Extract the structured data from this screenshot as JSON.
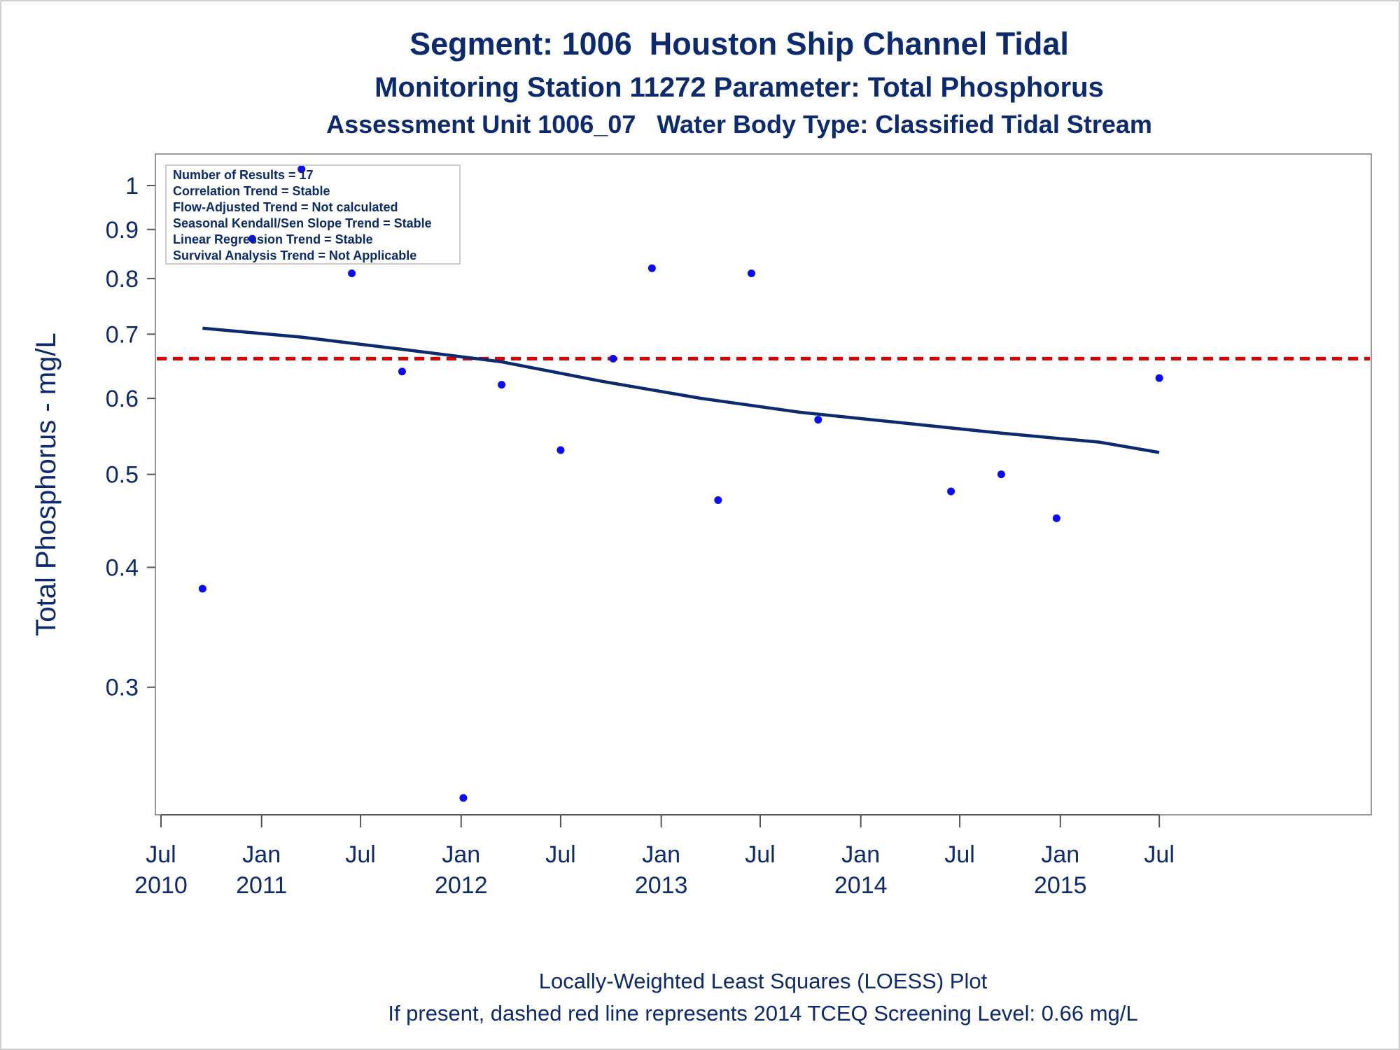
{
  "chart_data": {
    "type": "scatter",
    "title": "Segment: 1006  Houston Ship Channel Tidal",
    "subtitle": "Monitoring Station 11272 Parameter: Total Phosphorus",
    "subtitle2": "Assessment Unit 1006_07   Water Body Type: Classified Tidal Stream",
    "ylabel": "Total Phosphorus - mg/L",
    "xlabel": "",
    "y_scale": "log",
    "ylim": [
      0.225,
      1.05
    ],
    "xlim": [
      "2010-07-01",
      "2016-07-01"
    ],
    "grid": false,
    "y_ticks": [
      {
        "value": 0.3,
        "label": "0.3"
      },
      {
        "value": 0.4,
        "label": "0.4"
      },
      {
        "value": 0.5,
        "label": "0.5"
      },
      {
        "value": 0.6,
        "label": "0.6"
      },
      {
        "value": 0.7,
        "label": "0.7"
      },
      {
        "value": 0.8,
        "label": "0.8"
      },
      {
        "value": 0.9,
        "label": "0.9"
      },
      {
        "value": 1.0,
        "label": "1"
      }
    ],
    "x_ticks": [
      {
        "date": "2010-07-01",
        "month": "Jul",
        "year": "2010"
      },
      {
        "date": "2011-01-01",
        "month": "Jan",
        "year": "2011"
      },
      {
        "date": "2011-07-01",
        "month": "Jul",
        "year": ""
      },
      {
        "date": "2012-01-01",
        "month": "Jan",
        "year": "2012"
      },
      {
        "date": "2012-07-01",
        "month": "Jul",
        "year": ""
      },
      {
        "date": "2013-01-01",
        "month": "Jan",
        "year": "2013"
      },
      {
        "date": "2013-07-01",
        "month": "Jul",
        "year": ""
      },
      {
        "date": "2014-01-01",
        "month": "Jan",
        "year": "2014"
      },
      {
        "date": "2014-07-01",
        "month": "Jul",
        "year": ""
      },
      {
        "date": "2015-01-01",
        "month": "Jan",
        "year": "2015"
      },
      {
        "date": "2015-07-01",
        "month": "Jul",
        "year": ""
      }
    ],
    "points": [
      {
        "x": "2010-09-15",
        "y": 0.38
      },
      {
        "x": "2010-12-15",
        "y": 0.88
      },
      {
        "x": "2011-03-15",
        "y": 1.04
      },
      {
        "x": "2011-06-15",
        "y": 0.81
      },
      {
        "x": "2011-09-15",
        "y": 0.64
      },
      {
        "x": "2012-01-05",
        "y": 0.23
      },
      {
        "x": "2012-03-15",
        "y": 0.62
      },
      {
        "x": "2012-07-01",
        "y": 0.53
      },
      {
        "x": "2012-10-05",
        "y": 0.66
      },
      {
        "x": "2012-12-15",
        "y": 0.82
      },
      {
        "x": "2013-04-15",
        "y": 0.47
      },
      {
        "x": "2013-06-15",
        "y": 0.81
      },
      {
        "x": "2013-10-15",
        "y": 0.57
      },
      {
        "x": "2014-06-15",
        "y": 0.48
      },
      {
        "x": "2014-09-15",
        "y": 0.5
      },
      {
        "x": "2014-12-25",
        "y": 0.45
      },
      {
        "x": "2015-07-01",
        "y": 0.63
      }
    ],
    "trend_line": {
      "type": "LOESS",
      "points": [
        {
          "x": "2010-09-15",
          "y": 0.71
        },
        {
          "x": "2011-03-15",
          "y": 0.695
        },
        {
          "x": "2011-09-15",
          "y": 0.675
        },
        {
          "x": "2012-03-15",
          "y": 0.655
        },
        {
          "x": "2012-09-15",
          "y": 0.625
        },
        {
          "x": "2013-03-15",
          "y": 0.6
        },
        {
          "x": "2013-09-15",
          "y": 0.58
        },
        {
          "x": "2014-03-15",
          "y": 0.566
        },
        {
          "x": "2014-09-15",
          "y": 0.552
        },
        {
          "x": "2015-03-15",
          "y": 0.54
        },
        {
          "x": "2015-07-01",
          "y": 0.527
        }
      ]
    },
    "reference_line": {
      "y": 0.66,
      "color": "#dd0000",
      "style": "dashed"
    },
    "point_color": "#0a0aff",
    "line_color": "#0b2a6f",
    "text_color": "#0b2a6f",
    "stats_box": [
      "Number of Results = 17",
      "Correlation Trend = Stable",
      "Flow-Adjusted Trend = Not calculated",
      "Seasonal Kendall/Sen Slope Trend = Stable",
      "Linear Regression Trend = Stable",
      "Survival Analysis Trend = Not Applicable"
    ],
    "stats_box_placement": "top-left",
    "footnotes": [
      "Locally-Weighted Least Squares (LOESS) Plot",
      "If present, dashed red line represents 2014 TCEQ Screening Level: 0.66 mg/L"
    ]
  }
}
